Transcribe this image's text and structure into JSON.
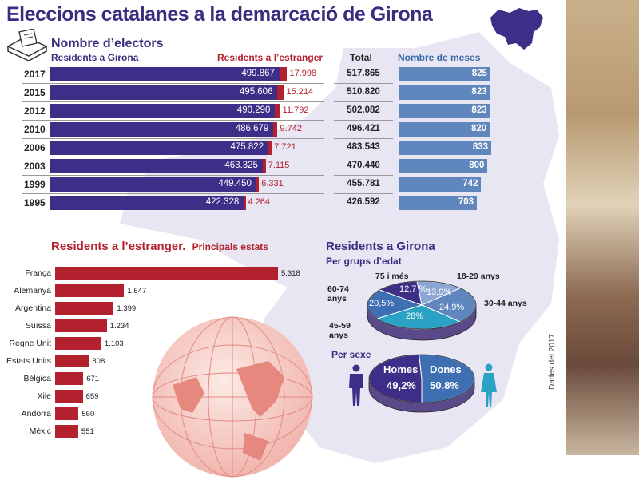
{
  "title": "Eleccions catalanes a la demarcació de Girona",
  "electors": {
    "title": "Nombre d’electors",
    "col_residents": "Residents a Girona",
    "col_abroad": "Residents a l’estranger",
    "col_total": "Total",
    "col_tables": "Nombre de meses"
  },
  "abroad_section": {
    "title": "Residents a l’estranger.",
    "subtitle": "Principals estats"
  },
  "girona_section": {
    "title": "Residents a Girona",
    "age_title": "Per grups d’edat",
    "sex_title": "Per sexe",
    "men_label": "Homes",
    "women_label": "Dones"
  },
  "source": "Dades del 2017",
  "colors": {
    "purple": "#3f2e88",
    "red": "#b3202e",
    "blue": "#5f86bd",
    "teal": "#2aa2c4"
  },
  "chart_data": [
    {
      "type": "bar",
      "title": "Nombre d’electors",
      "categories": [
        "2017",
        "2015",
        "2012",
        "2010",
        "2006",
        "2003",
        "1999",
        "1995"
      ],
      "series": [
        {
          "name": "Residents a Girona",
          "values": [
            499867,
            495606,
            490290,
            486679,
            475822,
            463325,
            449450,
            422328
          ],
          "labels": [
            "499.867",
            "495.606",
            "490.290",
            "486.679",
            "475.822",
            "463.325",
            "449.450",
            "422.328"
          ]
        },
        {
          "name": "Residents a l’estranger",
          "values": [
            17998,
            15214,
            11792,
            9742,
            7721,
            7115,
            6331,
            4264
          ],
          "labels": [
            "17.998",
            "15.214",
            "11.792",
            "9.742",
            "7.721",
            "7.115",
            "6.331",
            "4.264"
          ]
        },
        {
          "name": "Total",
          "values": [
            517865,
            510820,
            502082,
            496421,
            483543,
            470440,
            455781,
            426592
          ],
          "labels": [
            "517.865",
            "510.820",
            "502.082",
            "496.421",
            "483.543",
            "470.440",
            "455.781",
            "426.592"
          ]
        }
      ]
    },
    {
      "type": "bar",
      "title": "Nombre de meses",
      "categories": [
        "2017",
        "2015",
        "2012",
        "2010",
        "2006",
        "2003",
        "1999",
        "1995"
      ],
      "values": [
        825,
        823,
        823,
        820,
        833,
        800,
        742,
        703
      ]
    },
    {
      "type": "bar",
      "title": "Residents a l’estranger. Principals estats",
      "categories": [
        "França",
        "Alemanya",
        "Argentina",
        "Suïssa",
        "Regne Unit",
        "Estats Units",
        "Bèlgica",
        "Xile",
        "Andorra",
        "Mèxic"
      ],
      "values": [
        5318,
        1647,
        1399,
        1234,
        1103,
        808,
        671,
        659,
        560,
        551
      ],
      "labels": [
        "5.318",
        "1.647",
        "1.399",
        "1.234",
        "1.103",
        "808",
        "671",
        "659",
        "560",
        "551"
      ]
    },
    {
      "type": "pie",
      "title": "Per grups d’edat",
      "categories": [
        "18-29 anys",
        "30-44 anys",
        "45-59 anys",
        "60-74 anys",
        "75 i més"
      ],
      "values": [
        13.9,
        24.9,
        28,
        20.5,
        12.7
      ],
      "labels": [
        "13,9%",
        "24,9%",
        "28%",
        "20,5%",
        "12,7 %"
      ]
    },
    {
      "type": "pie",
      "title": "Per sexe",
      "categories": [
        "Homes",
        "Dones"
      ],
      "values": [
        49.2,
        50.8
      ],
      "labels": [
        "49,2%",
        "50,8%"
      ]
    }
  ]
}
